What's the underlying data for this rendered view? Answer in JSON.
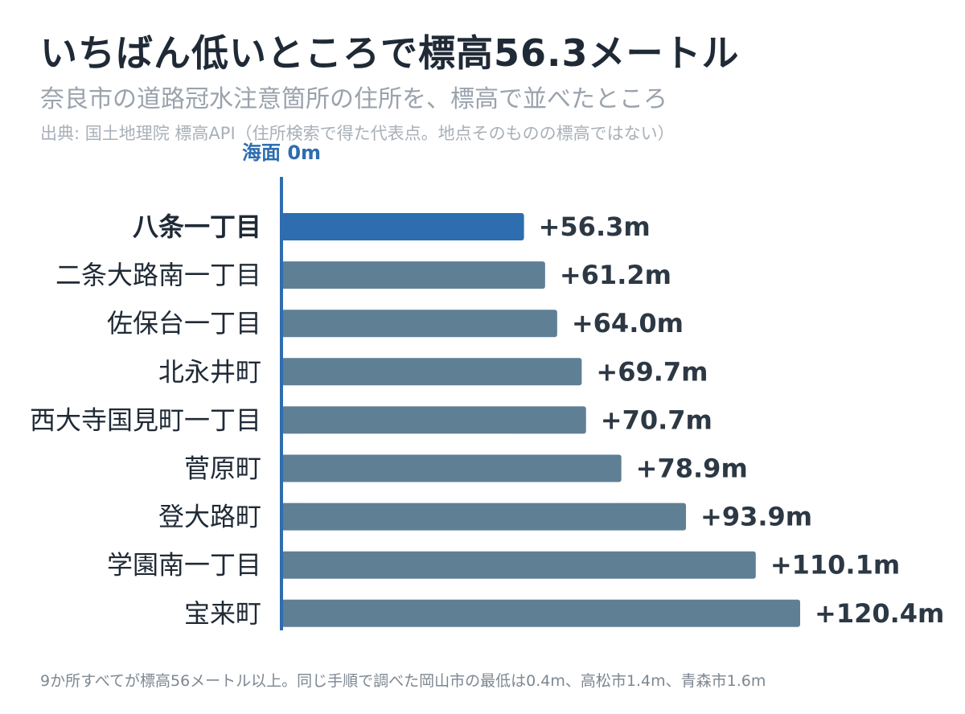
{
  "header": {
    "title": "いちばん低いところで標高56.3メートル",
    "subtitle": "奈良市の道路冠水注意箇所の住所を、標高で並べたところ",
    "source": "出典: 国土地理院 標高API（住所検索で得た代表点。地点そのものの標高ではない）"
  },
  "footnote": "9か所すべてが標高56メートル以上。同じ手順で調べた岡山市の最低は0.4m、高松市1.4m、青森市1.6m",
  "colors": {
    "highlight": "#2d6db0",
    "bar": "#5f7f95",
    "axis": "#2d6db0"
  },
  "chart_data": {
    "type": "bar",
    "orientation": "horizontal",
    "zero_label": "海面 0m",
    "categories": [
      "八条一丁目",
      "二条大路南一丁目",
      "佐保台一丁目",
      "北永井町",
      "西大寺国見町一丁目",
      "菅原町",
      "登大路町",
      "学園南一丁目",
      "宝来町"
    ],
    "values": [
      56.3,
      61.2,
      64.0,
      69.7,
      70.7,
      78.9,
      93.9,
      110.1,
      120.4
    ],
    "value_labels": [
      "+56.3m",
      "+61.2m",
      "+64.0m",
      "+69.7m",
      "+70.7m",
      "+78.9m",
      "+93.9m",
      "+110.1m",
      "+120.4m"
    ],
    "highlight_index": 0,
    "xlim": [
      0,
      120.4
    ],
    "grid": false,
    "legend": "none"
  }
}
